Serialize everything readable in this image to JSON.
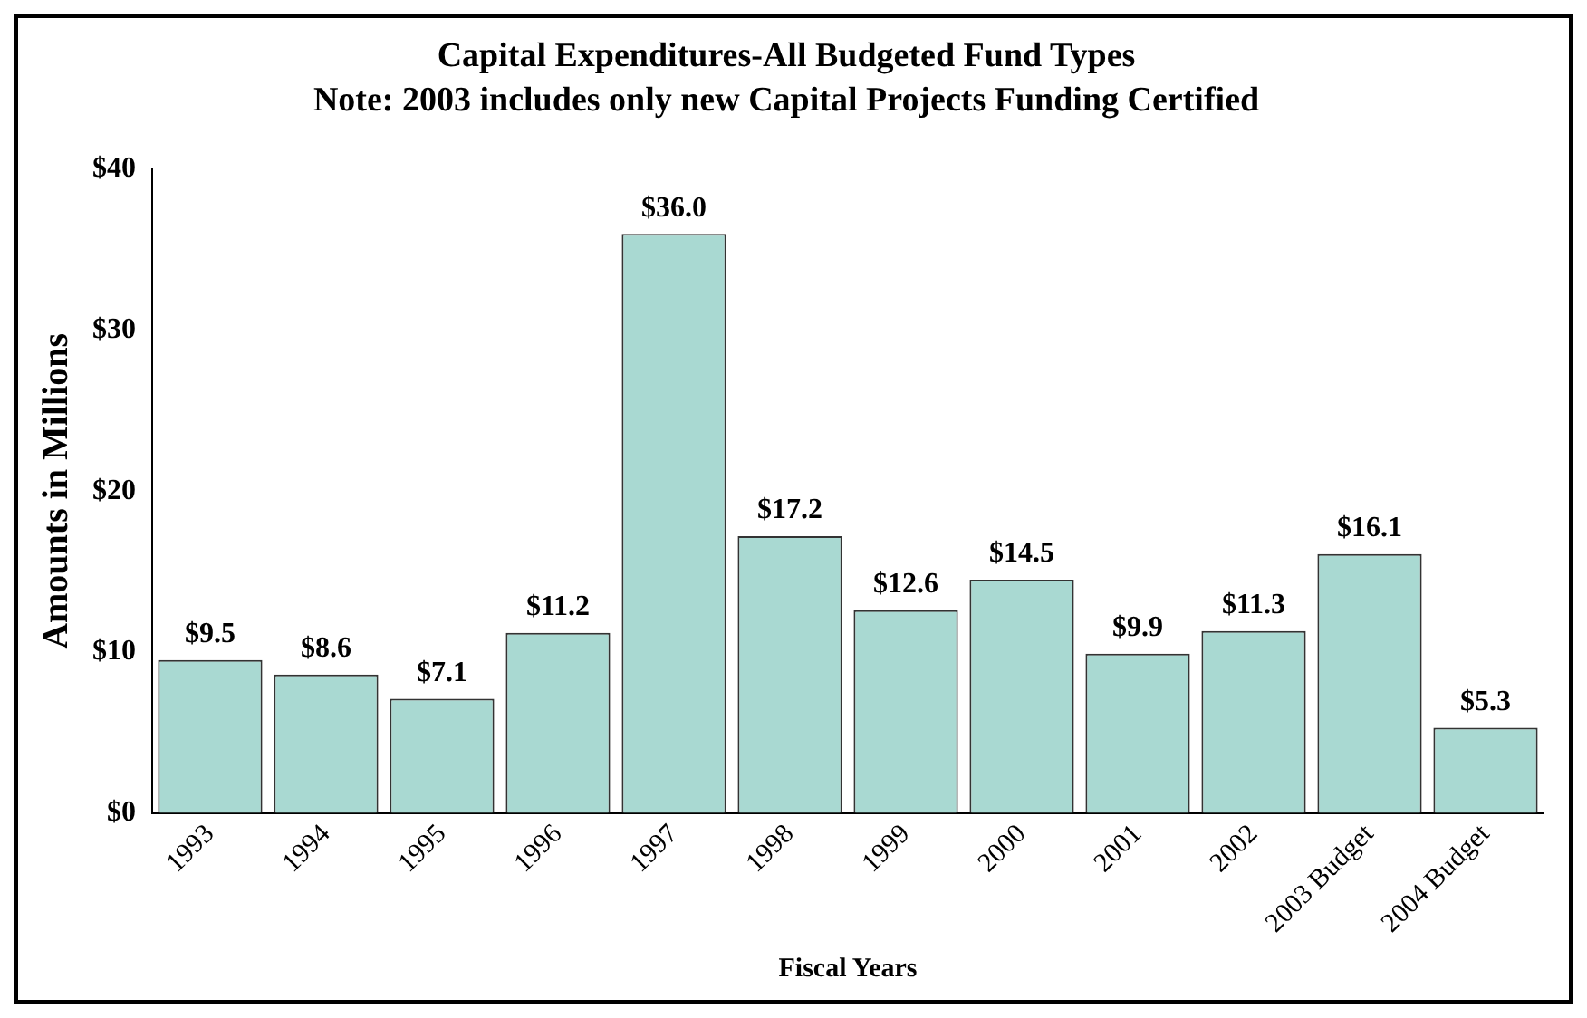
{
  "chart_data": {
    "type": "bar",
    "title": "Capital Expenditures-All Budgeted Fund Types",
    "subtitle": "Note: 2003 includes only new Capital Projects Funding Certified",
    "xlabel": "Fiscal Years",
    "ylabel": "Amounts in Millions",
    "categories": [
      "1993",
      "1994",
      "1995",
      "1996",
      "1997",
      "1998",
      "1999",
      "2000",
      "2001",
      "2002",
      "2003 Budget",
      "2004 Budget"
    ],
    "values": [
      9.5,
      8.6,
      7.1,
      11.2,
      36.0,
      17.2,
      12.6,
      14.5,
      9.9,
      11.3,
      16.1,
      5.3
    ],
    "value_labels": [
      "$9.5",
      "$8.6",
      "$7.1",
      "$11.2",
      "$36.0",
      "$17.2",
      "$12.6",
      "$14.5",
      "$9.9",
      "$11.3",
      "$16.1",
      "$5.3"
    ],
    "color": "#a9d9d2",
    "ylim": [
      0,
      40
    ],
    "yticks": [
      {
        "value": 0,
        "label": "$0"
      },
      {
        "value": 10,
        "label": "$10"
      },
      {
        "value": 20,
        "label": "$20"
      },
      {
        "value": 30,
        "label": "$30"
      },
      {
        "value": 40,
        "label": "$40"
      }
    ],
    "grid": false,
    "legend": false
  }
}
